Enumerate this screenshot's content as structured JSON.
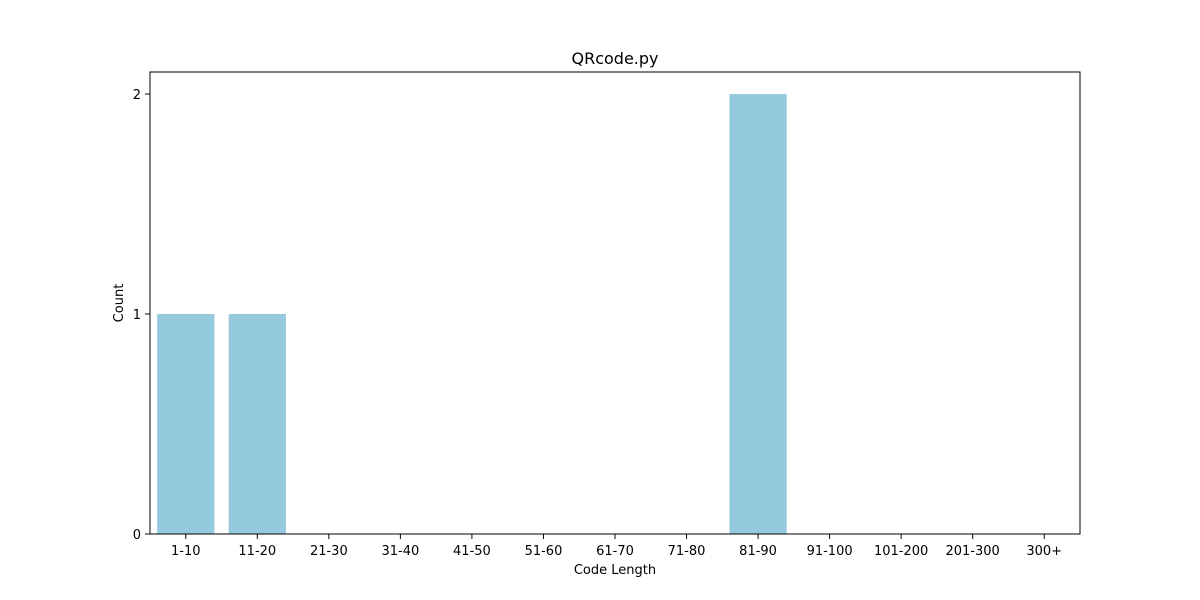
{
  "chart_data": {
    "type": "bar",
    "title": "QRcode.py",
    "xlabel": "Code Length",
    "ylabel": "Count",
    "categories": [
      "1-10",
      "11-20",
      "21-30",
      "31-40",
      "41-50",
      "51-60",
      "61-70",
      "71-80",
      "81-90",
      "91-100",
      "101-200",
      "201-300",
      "300+"
    ],
    "values": [
      1,
      1,
      0,
      0,
      0,
      0,
      0,
      0,
      2,
      0,
      0,
      0,
      0
    ],
    "ylim": [
      0,
      2.1
    ],
    "yticks": [
      0,
      1,
      2
    ],
    "ytick_labels": [
      "0",
      "1",
      "2"
    ],
    "grid": false,
    "bar_color": "#95c9de"
  }
}
